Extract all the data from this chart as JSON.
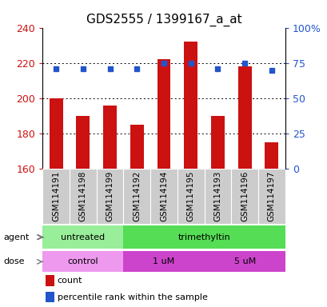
{
  "title": "GDS2555 / 1399167_a_at",
  "samples": [
    "GSM114191",
    "GSM114198",
    "GSM114199",
    "GSM114192",
    "GSM114194",
    "GSM114195",
    "GSM114193",
    "GSM114196",
    "GSM114197"
  ],
  "counts": [
    200,
    190,
    196,
    185,
    222,
    232,
    190,
    218,
    175
  ],
  "percentile_ranks": [
    71,
    71,
    71,
    71,
    75,
    75,
    71,
    75,
    70
  ],
  "ymin": 160,
  "ymax": 240,
  "yticks": [
    160,
    180,
    200,
    220,
    240
  ],
  "right_yticks": [
    0,
    25,
    50,
    75,
    100
  ],
  "bar_color": "#cc1111",
  "dot_color": "#2255cc",
  "agent_groups": [
    {
      "label": "untreated",
      "start": 0,
      "end": 3,
      "color": "#99ee99"
    },
    {
      "label": "trimethyltin",
      "start": 3,
      "end": 9,
      "color": "#55dd55"
    }
  ],
  "dose_groups": [
    {
      "label": "control",
      "start": 0,
      "end": 3,
      "color": "#ee99ee"
    },
    {
      "label": "1 uM",
      "start": 3,
      "end": 6,
      "color": "#dd55dd"
    },
    {
      "label": "5 uM",
      "start": 6,
      "end": 9,
      "color": "#dd55dd"
    }
  ],
  "bar_color_legend": "#cc1111",
  "dot_color_legend": "#2255cc",
  "ylabel_color": "#cc1111",
  "right_ylabel_color": "#2255cc",
  "title_fontsize": 11,
  "tick_fontsize": 9,
  "sample_fontsize": 7.5
}
